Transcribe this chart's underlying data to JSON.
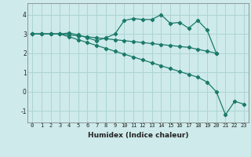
{
  "xlabel": "Humidex (Indice chaleur)",
  "bg_color": "#ceeaea",
  "grid_color": "#aed4d4",
  "line_color": "#1a7a6a",
  "xlim": [
    -0.5,
    23.5
  ],
  "ylim": [
    -1.6,
    4.6
  ],
  "xticks": [
    0,
    1,
    2,
    3,
    4,
    5,
    6,
    7,
    8,
    9,
    10,
    11,
    12,
    13,
    14,
    15,
    16,
    17,
    18,
    19,
    20,
    21,
    22,
    23
  ],
  "yticks": [
    -1,
    0,
    1,
    2,
    3,
    4
  ],
  "line1_x": [
    0,
    1,
    2,
    3,
    4,
    5,
    6,
    7,
    8,
    9,
    10,
    11,
    12,
    13,
    14,
    15,
    16,
    17,
    18,
    19,
    20
  ],
  "line1_y": [
    3.0,
    3.0,
    3.0,
    3.0,
    2.95,
    2.9,
    2.85,
    2.8,
    2.75,
    2.7,
    2.65,
    2.6,
    2.55,
    2.5,
    2.45,
    2.4,
    2.35,
    2.3,
    2.2,
    2.1,
    2.0
  ],
  "line2_x": [
    0,
    1,
    2,
    3,
    4,
    5,
    6,
    7,
    8,
    9,
    10,
    11,
    12,
    13,
    14,
    15,
    16,
    17,
    18,
    19,
    20
  ],
  "line2_y": [
    3.0,
    3.0,
    3.0,
    3.0,
    3.05,
    2.95,
    2.8,
    2.65,
    2.8,
    3.0,
    3.7,
    3.8,
    3.75,
    3.75,
    4.0,
    3.55,
    3.6,
    3.3,
    3.7,
    3.2,
    2.0
  ],
  "line3_x": [
    0,
    1,
    2,
    3,
    4,
    5,
    6,
    7,
    8,
    9,
    10,
    11,
    12,
    13,
    14,
    15,
    16,
    17,
    18,
    19,
    20,
    21,
    22,
    23
  ],
  "line3_y": [
    3.0,
    3.0,
    3.0,
    3.0,
    2.85,
    2.7,
    2.55,
    2.4,
    2.25,
    2.1,
    1.95,
    1.8,
    1.65,
    1.5,
    1.35,
    1.2,
    1.05,
    0.9,
    0.75,
    0.5,
    0.0,
    -1.2,
    -0.5,
    -0.65
  ]
}
